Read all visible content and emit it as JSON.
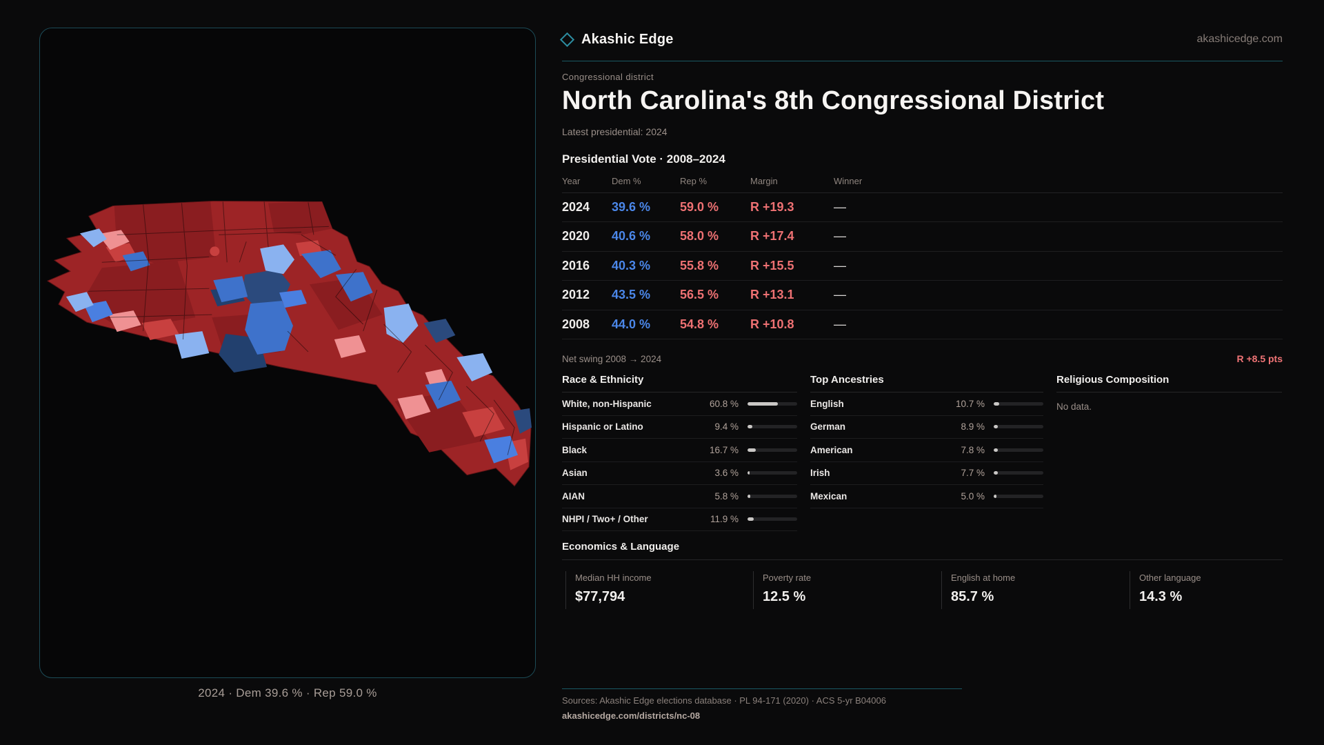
{
  "brand": {
    "name": "Akashic Edge",
    "domain": "akashicedge.com"
  },
  "district": {
    "kicker": "Congressional district",
    "title": "North Carolina's 8th Congressional District",
    "subtitle": "Latest presidential: 2024"
  },
  "map": {
    "caption": "2024 · Dem 39.6 % · Rep 59.0 %",
    "palette": {
      "rep_base": "#9d2426",
      "rep_dark": "#8a1d20",
      "rep_bright": "#c8403f",
      "rep_light": "#ef9193",
      "dem": "#3e72cb",
      "dem_mid": "#4a7fe0",
      "dem_light": "#8ab2f0",
      "dem_dark": "#2b4a7d",
      "dem_darker": "#22406e",
      "accent": "#1a5a64",
      "dem_text": "#4b87e9",
      "rep_text": "#ee7173"
    }
  },
  "vote_table": {
    "title": "Presidential Vote · 2008–2024",
    "columns": [
      "Year",
      "Dem %",
      "Rep %",
      "Margin",
      "Winner"
    ],
    "rows": [
      {
        "year": "2024",
        "dem": "39.6 %",
        "rep": "59.0 %",
        "margin": "R +19.3",
        "winner": "—"
      },
      {
        "year": "2020",
        "dem": "40.6 %",
        "rep": "58.0 %",
        "margin": "R +17.4",
        "winner": "—"
      },
      {
        "year": "2016",
        "dem": "40.3 %",
        "rep": "55.8 %",
        "margin": "R +15.5",
        "winner": "—"
      },
      {
        "year": "2012",
        "dem": "43.5 %",
        "rep": "56.5 %",
        "margin": "R +13.1",
        "winner": "—"
      },
      {
        "year": "2008",
        "dem": "44.0 %",
        "rep": "54.8 %",
        "margin": "R +10.8",
        "winner": "—"
      }
    ],
    "net_swing_label": "Net swing 2008 → 2024",
    "net_swing_value": "R +8.5 pts"
  },
  "race_ethnicity": {
    "title": "Race & Ethnicity",
    "rows": [
      {
        "label": "White, non-Hispanic",
        "value": "60.8 %",
        "pct": 60.8
      },
      {
        "label": "Hispanic or Latino",
        "value": "9.4 %",
        "pct": 9.4
      },
      {
        "label": "Black",
        "value": "16.7 %",
        "pct": 16.7
      },
      {
        "label": "Asian",
        "value": "3.6 %",
        "pct": 3.6
      },
      {
        "label": "AIAN",
        "value": "5.8 %",
        "pct": 5.8
      },
      {
        "label": "NHPI / Two+ / Other",
        "value": "11.9 %",
        "pct": 11.9
      }
    ]
  },
  "ancestries": {
    "title": "Top Ancestries",
    "rows": [
      {
        "label": "English",
        "value": "10.7 %",
        "pct": 10.7
      },
      {
        "label": "German",
        "value": "8.9 %",
        "pct": 8.9
      },
      {
        "label": "American",
        "value": "7.8 %",
        "pct": 7.8
      },
      {
        "label": "Irish",
        "value": "7.7 %",
        "pct": 7.7
      },
      {
        "label": "Mexican",
        "value": "5.0 %",
        "pct": 5.0
      }
    ]
  },
  "religion": {
    "title": "Religious Composition",
    "empty": "No data."
  },
  "economics": {
    "title": "Economics & Language",
    "stats": [
      {
        "label": "Median HH income",
        "value": "$77,794"
      },
      {
        "label": "Poverty rate",
        "value": "12.5 %"
      },
      {
        "label": "English at home",
        "value": "85.7 %"
      },
      {
        "label": "Other language",
        "value": "14.3 %"
      }
    ]
  },
  "footer": {
    "sources": "Sources: Akashic Edge elections database · PL 94-171 (2020) · ACS 5-yr B04006",
    "permalink": "akashicedge.com/districts/nc-08"
  },
  "chart_data": [
    {
      "type": "table",
      "title": "Presidential Vote · 2008–2024",
      "columns": [
        "Year",
        "Dem %",
        "Rep %",
        "Margin",
        "Winner"
      ],
      "rows": [
        [
          "2024",
          39.6,
          59.0,
          "R +19.3",
          "—"
        ],
        [
          "2020",
          40.6,
          58.0,
          "R +17.4",
          "—"
        ],
        [
          "2016",
          40.3,
          55.8,
          "R +15.5",
          "—"
        ],
        [
          "2012",
          43.5,
          56.5,
          "R +13.1",
          "—"
        ],
        [
          "2008",
          44.0,
          54.8,
          "R +10.8",
          "—"
        ]
      ],
      "annotations": [
        "Net swing 2008 → 2024: R +8.5 pts"
      ]
    },
    {
      "type": "bar",
      "title": "Race & Ethnicity",
      "categories": [
        "White, non-Hispanic",
        "Hispanic or Latino",
        "Black",
        "Asian",
        "AIAN",
        "NHPI / Two+ / Other"
      ],
      "values": [
        60.8,
        9.4,
        16.7,
        3.6,
        5.8,
        11.9
      ],
      "xlabel": "",
      "ylabel": "Percent",
      "ylim": [
        0,
        100
      ]
    },
    {
      "type": "bar",
      "title": "Top Ancestries",
      "categories": [
        "English",
        "German",
        "American",
        "Irish",
        "Mexican"
      ],
      "values": [
        10.7,
        8.9,
        7.8,
        7.7,
        5.0
      ],
      "xlabel": "",
      "ylabel": "Percent",
      "ylim": [
        0,
        100
      ]
    },
    {
      "type": "bar",
      "title": "Economics & Language",
      "categories": [
        "Poverty rate",
        "English at home",
        "Other language"
      ],
      "values": [
        12.5,
        85.7,
        14.3
      ],
      "annotations": [
        "Median HH income $77,794"
      ]
    }
  ]
}
